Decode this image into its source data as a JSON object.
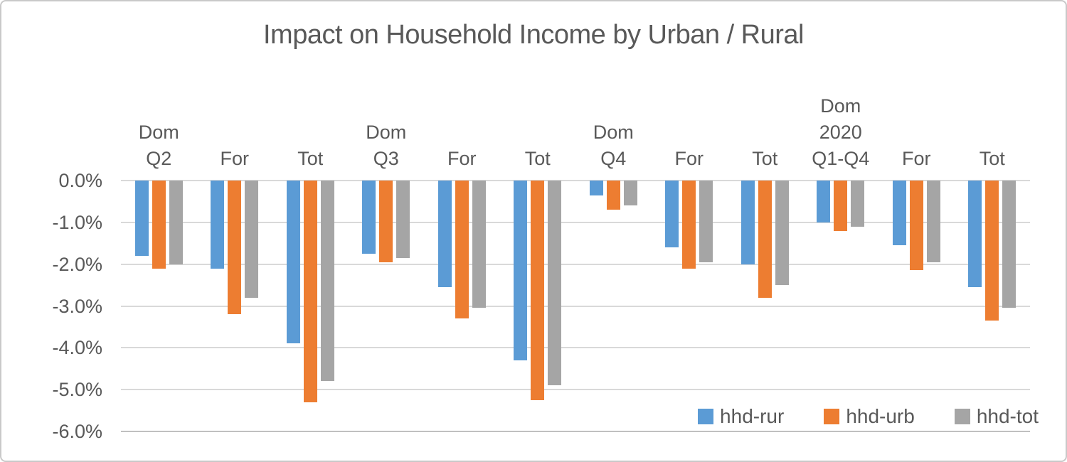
{
  "chart_data": {
    "type": "bar",
    "title": "Impact on Household Income by Urban / Rural",
    "categories": [
      "Dom\nQ2",
      "For",
      "Tot",
      "Dom\nQ3",
      "For",
      "Tot",
      "Dom\nQ4",
      "For",
      "Tot",
      "Dom\n2020\nQ1-Q4",
      "For",
      "Tot"
    ],
    "series": [
      {
        "name": "hhd-rur",
        "color": "#5B9BD5",
        "values": [
          -1.8,
          -2.1,
          -3.9,
          -1.75,
          -2.55,
          -4.3,
          -0.35,
          -1.6,
          -2.0,
          -1.0,
          -1.55,
          -2.55
        ]
      },
      {
        "name": "hhd-urb",
        "color": "#ED7D31",
        "values": [
          -2.1,
          -3.2,
          -5.3,
          -1.95,
          -3.3,
          -5.25,
          -0.7,
          -2.1,
          -2.8,
          -1.2,
          -2.15,
          -3.35
        ]
      },
      {
        "name": "hhd-tot",
        "color": "#A5A5A5",
        "values": [
          -2.0,
          -2.8,
          -4.8,
          -1.85,
          -3.05,
          -4.9,
          -0.6,
          -1.95,
          -2.5,
          -1.1,
          -1.95,
          -3.05
        ]
      }
    ],
    "yticks": [
      "0.0%",
      "-1.0%",
      "-2.0%",
      "-3.0%",
      "-4.0%",
      "-5.0%",
      "-6.0%"
    ],
    "ylim": [
      -6.0,
      0.0
    ],
    "ytick_step": 1.0,
    "grid": "horizontal",
    "legend_position": "bottom-right",
    "axis_text_color": "#595959",
    "grid_color": "#D9D9D9"
  }
}
